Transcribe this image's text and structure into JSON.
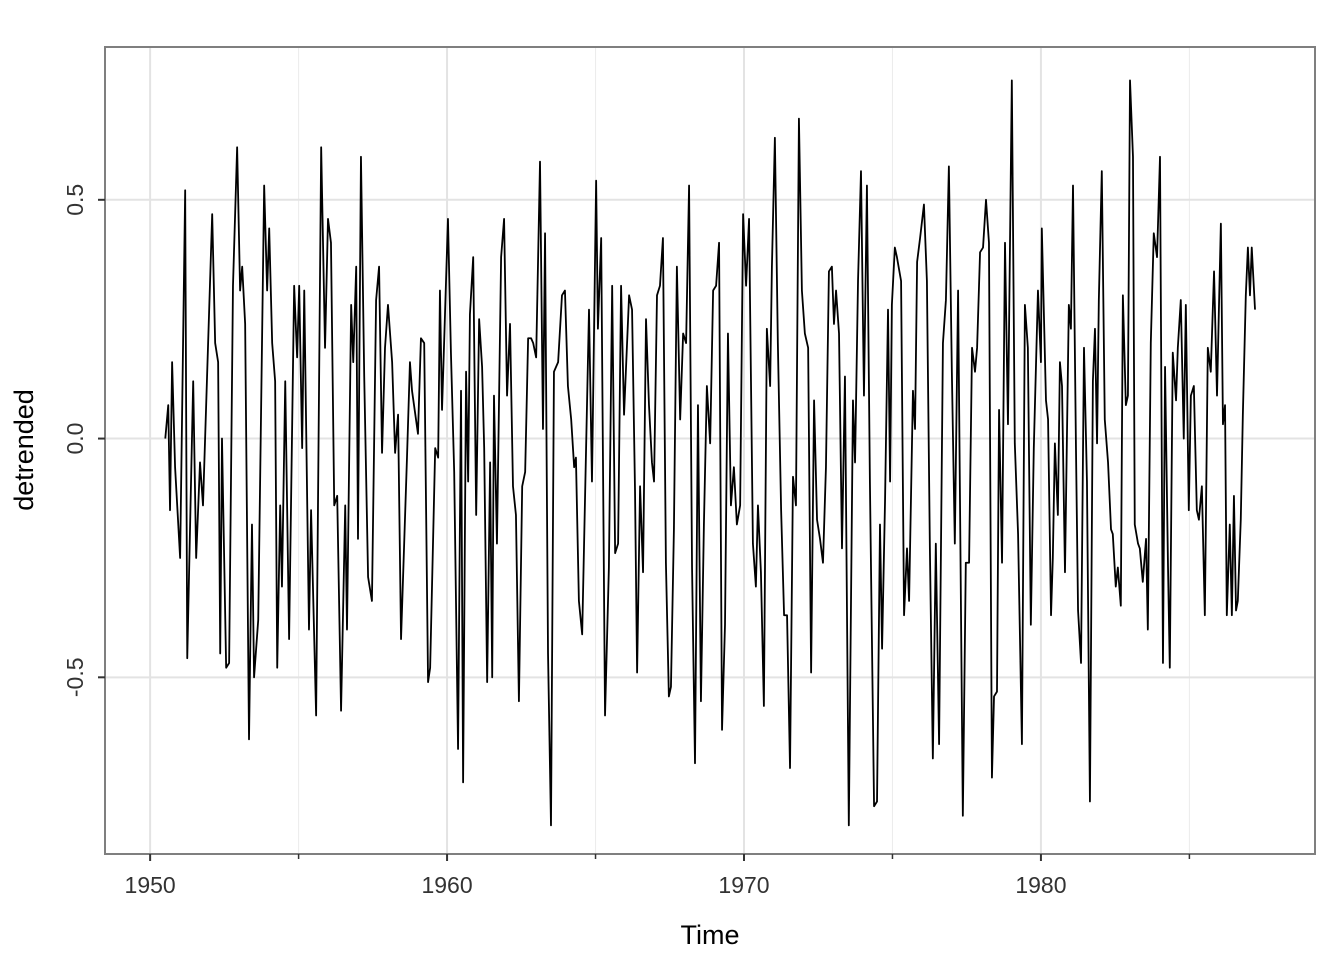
{
  "chart_data": {
    "type": "line",
    "xlabel": "Time",
    "ylabel": "detrended",
    "color": "#000000",
    "grid": true,
    "xlim": [
      1948.48,
      1989.23
    ],
    "xticks": [
      1950,
      1960,
      1970,
      1980
    ],
    "xminor": [
      1955,
      1965,
      1975,
      1985
    ],
    "ylim": [
      -0.87,
      0.82
    ],
    "yticks": [
      -0.5,
      {
        "value": 0,
        "label": "0.0"
      },
      0.5
    ],
    "x": [
      1950.51,
      1950.61,
      1950.67,
      1950.74,
      1950.84,
      1951.01,
      1951.18,
      1951.25,
      1951.45,
      1951.55,
      1951.68,
      1951.78,
      1952.09,
      1952.19,
      1952.29,
      1952.36,
      1952.42,
      1952.56,
      1952.66,
      1952.79,
      1952.93,
      1953.03,
      1953.1,
      1953.2,
      1953.33,
      1953.43,
      1953.5,
      1953.64,
      1953.84,
      1953.94,
      1954.01,
      1954.11,
      1954.21,
      1954.28,
      1954.38,
      1954.44,
      1954.55,
      1954.68,
      1954.85,
      1954.95,
      1955.02,
      1955.12,
      1955.19,
      1955.35,
      1955.42,
      1955.59,
      1955.76,
      1955.89,
      1955.99,
      1956.09,
      1956.2,
      1956.3,
      1956.43,
      1956.57,
      1956.63,
      1956.77,
      1956.84,
      1956.94,
      1957.0,
      1957.1,
      1957.21,
      1957.34,
      1957.47,
      1957.61,
      1957.71,
      1957.81,
      1957.91,
      1958.01,
      1958.15,
      1958.25,
      1958.35,
      1958.45,
      1958.65,
      1958.75,
      1958.82,
      1959.02,
      1959.12,
      1959.23,
      1959.36,
      1959.43,
      1959.6,
      1959.7,
      1959.76,
      1959.83,
      1959.93,
      1960.03,
      1960.13,
      1960.24,
      1960.37,
      1960.47,
      1960.54,
      1960.64,
      1960.71,
      1960.77,
      1960.88,
      1960.98,
      1961.08,
      1961.18,
      1961.25,
      1961.35,
      1961.45,
      1961.52,
      1961.58,
      1961.68,
      1961.82,
      1961.92,
      1962.02,
      1962.12,
      1962.22,
      1962.32,
      1962.42,
      1962.53,
      1962.63,
      1962.73,
      1962.83,
      1962.9,
      1963.0,
      1963.13,
      1963.23,
      1963.3,
      1963.4,
      1963.5,
      1963.6,
      1963.74,
      1963.87,
      1963.97,
      1964.07,
      1964.18,
      1964.28,
      1964.34,
      1964.44,
      1964.55,
      1964.78,
      1964.88,
      1965.02,
      1965.08,
      1965.19,
      1965.32,
      1965.45,
      1965.56,
      1965.66,
      1965.76,
      1965.86,
      1965.96,
      1966.13,
      1966.23,
      1966.33,
      1966.4,
      1966.5,
      1966.6,
      1966.7,
      1966.8,
      1966.9,
      1966.97,
      1967.07,
      1967.17,
      1967.27,
      1967.37,
      1967.47,
      1967.54,
      1967.64,
      1967.74,
      1967.85,
      1967.95,
      1968.05,
      1968.15,
      1968.25,
      1968.35,
      1968.45,
      1968.55,
      1968.65,
      1968.75,
      1968.86,
      1968.96,
      1969.06,
      1969.16,
      1969.26,
      1969.36,
      1969.46,
      1969.56,
      1969.66,
      1969.76,
      1969.87,
      1969.97,
      1970.07,
      1970.17,
      1970.3,
      1970.4,
      1970.47,
      1970.57,
      1970.67,
      1970.77,
      1970.88,
      1970.94,
      1971.04,
      1971.14,
      1971.25,
      1971.35,
      1971.45,
      1971.55,
      1971.65,
      1971.75,
      1971.85,
      1971.95,
      1972.05,
      1972.16,
      1972.26,
      1972.36,
      1972.46,
      1972.56,
      1972.66,
      1972.76,
      1972.86,
      1972.96,
      1973.03,
      1973.1,
      1973.2,
      1973.3,
      1973.4,
      1973.53,
      1973.67,
      1973.74,
      1973.84,
      1973.94,
      1974.04,
      1974.14,
      1974.24,
      1974.38,
      1974.48,
      1974.58,
      1974.65,
      1974.75,
      1974.85,
      1974.92,
      1974.98,
      1975.08,
      1975.15,
      1975.29,
      1975.39,
      1975.49,
      1975.56,
      1975.69,
      1975.76,
      1975.83,
      1975.93,
      1976.06,
      1976.16,
      1976.26,
      1976.36,
      1976.46,
      1976.57,
      1976.7,
      1976.8,
      1976.9,
      1977.0,
      1977.1,
      1977.21,
      1977.37,
      1977.47,
      1977.58,
      1977.68,
      1977.78,
      1977.85,
      1977.95,
      1978.05,
      1978.15,
      1978.25,
      1978.35,
      1978.42,
      1978.52,
      1978.59,
      1978.69,
      1978.79,
      1978.89,
      1979.02,
      1979.12,
      1979.23,
      1979.36,
      1979.46,
      1979.56,
      1979.66,
      1979.76,
      1979.9,
      1980.0,
      1980.03,
      1980.17,
      1980.24,
      1980.34,
      1980.4,
      1980.47,
      1980.57,
      1980.64,
      1980.71,
      1980.81,
      1980.94,
      1981.01,
      1981.08,
      1981.18,
      1981.25,
      1981.35,
      1981.45,
      1981.55,
      1981.65,
      1981.75,
      1981.82,
      1981.89,
      1981.95,
      1982.05,
      1982.15,
      1982.26,
      1982.36,
      1982.42,
      1982.52,
      1982.59,
      1982.69,
      1982.76,
      1982.86,
      1982.93,
      1983.0,
      1983.1,
      1983.16,
      1983.27,
      1983.33,
      1983.43,
      1983.54,
      1983.6,
      1983.7,
      1983.8,
      1983.91,
      1984.01,
      1984.11,
      1984.18,
      1984.28,
      1984.34,
      1984.44,
      1984.55,
      1984.61,
      1984.71,
      1984.81,
      1984.88,
      1984.98,
      1985.05,
      1985.15,
      1985.25,
      1985.32,
      1985.42,
      1985.52,
      1985.62,
      1985.72,
      1985.83,
      1985.93,
      1985.99,
      1986.06,
      1986.13,
      1986.2,
      1986.26,
      1986.36,
      1986.43,
      1986.5,
      1986.57,
      1986.63,
      1986.73,
      1986.8,
      1986.9,
      1986.97,
      1987.04,
      1987.1,
      1987.21
    ],
    "values": [
      0.0,
      0.07,
      -0.15,
      0.16,
      -0.06,
      -0.25,
      0.52,
      -0.46,
      0.12,
      -0.25,
      -0.05,
      -0.14,
      0.47,
      0.2,
      0.16,
      -0.45,
      0.0,
      -0.48,
      -0.47,
      0.32,
      0.61,
      0.31,
      0.36,
      0.24,
      -0.63,
      -0.18,
      -0.5,
      -0.38,
      0.53,
      0.31,
      0.44,
      0.2,
      0.12,
      -0.48,
      -0.14,
      -0.31,
      0.12,
      -0.42,
      0.32,
      0.17,
      0.32,
      -0.02,
      0.31,
      -0.4,
      -0.15,
      -0.58,
      0.61,
      0.19,
      0.46,
      0.41,
      -0.14,
      -0.12,
      -0.57,
      -0.14,
      -0.4,
      0.28,
      0.16,
      0.36,
      -0.21,
      0.59,
      0.13,
      -0.29,
      -0.34,
      0.29,
      0.36,
      -0.03,
      0.19,
      0.28,
      0.16,
      -0.03,
      0.05,
      -0.42,
      -0.04,
      0.16,
      0.1,
      0.01,
      0.21,
      0.2,
      -0.51,
      -0.48,
      -0.02,
      -0.04,
      0.31,
      0.06,
      0.26,
      0.46,
      0.18,
      -0.07,
      -0.65,
      0.1,
      -0.72,
      0.14,
      -0.09,
      0.26,
      0.38,
      -0.16,
      0.25,
      0.15,
      -0.02,
      -0.51,
      -0.05,
      -0.5,
      0.09,
      -0.22,
      0.38,
      0.46,
      0.09,
      0.24,
      -0.1,
      -0.16,
      -0.55,
      -0.1,
      -0.07,
      0.21,
      0.21,
      0.2,
      0.17,
      0.58,
      0.02,
      0.43,
      -0.45,
      -0.81,
      0.14,
      0.16,
      0.3,
      0.31,
      0.11,
      0.04,
      -0.06,
      -0.04,
      -0.34,
      -0.41,
      0.27,
      -0.09,
      0.54,
      0.23,
      0.42,
      -0.58,
      -0.27,
      0.32,
      -0.24,
      -0.22,
      0.32,
      0.05,
      0.3,
      0.27,
      -0.11,
      -0.49,
      -0.1,
      -0.28,
      0.25,
      0.07,
      -0.05,
      -0.09,
      0.3,
      0.32,
      0.42,
      -0.26,
      -0.54,
      -0.52,
      -0.19,
      0.36,
      0.04,
      0.22,
      0.2,
      0.53,
      -0.27,
      -0.68,
      0.07,
      -0.55,
      -0.18,
      0.11,
      -0.01,
      0.31,
      0.32,
      0.41,
      -0.61,
      -0.39,
      0.22,
      -0.14,
      -0.06,
      -0.18,
      -0.14,
      0.47,
      0.32,
      0.46,
      -0.22,
      -0.31,
      -0.14,
      -0.28,
      -0.56,
      0.23,
      0.11,
      0.36,
      0.63,
      0.2,
      -0.15,
      -0.37,
      -0.37,
      -0.69,
      -0.08,
      -0.14,
      0.67,
      0.31,
      0.22,
      0.19,
      -0.49,
      0.08,
      -0.17,
      -0.21,
      -0.26,
      -0.06,
      0.35,
      0.36,
      0.24,
      0.31,
      0.22,
      -0.23,
      0.13,
      -0.81,
      0.08,
      -0.05,
      0.33,
      0.56,
      0.09,
      0.53,
      -0.09,
      -0.77,
      -0.76,
      -0.18,
      -0.44,
      -0.13,
      0.27,
      -0.09,
      0.28,
      0.4,
      0.38,
      0.33,
      -0.37,
      -0.23,
      -0.34,
      0.1,
      0.02,
      0.37,
      0.42,
      0.49,
      0.33,
      -0.23,
      -0.67,
      -0.22,
      -0.64,
      0.2,
      0.29,
      0.57,
      0.14,
      -0.22,
      0.31,
      -0.79,
      -0.26,
      -0.26,
      0.19,
      0.14,
      0.19,
      0.39,
      0.4,
      0.5,
      0.41,
      -0.71,
      -0.54,
      -0.53,
      0.06,
      -0.26,
      0.41,
      0.03,
      0.75,
      -0.01,
      -0.2,
      -0.64,
      0.28,
      0.19,
      -0.39,
      -0.02,
      0.31,
      0.16,
      0.44,
      0.08,
      0.04,
      -0.37,
      -0.25,
      -0.01,
      -0.16,
      0.16,
      0.11,
      -0.28,
      0.28,
      0.23,
      0.53,
      -0.02,
      -0.36,
      -0.47,
      0.19,
      -0.09,
      -0.76,
      0.12,
      0.23,
      -0.01,
      0.29,
      0.56,
      0.04,
      -0.05,
      -0.19,
      -0.2,
      -0.31,
      -0.27,
      -0.35,
      0.3,
      0.07,
      0.09,
      0.75,
      0.59,
      -0.18,
      -0.22,
      -0.23,
      -0.3,
      -0.21,
      -0.4,
      0.2,
      0.43,
      0.38,
      0.59,
      -0.47,
      0.15,
      -0.27,
      -0.48,
      0.18,
      0.08,
      0.19,
      0.29,
      0.0,
      0.28,
      -0.15,
      0.09,
      0.11,
      -0.15,
      -0.17,
      -0.1,
      -0.37,
      0.19,
      0.14,
      0.35,
      0.09,
      0.26,
      0.45,
      0.03,
      0.07,
      -0.37,
      -0.18,
      -0.37,
      -0.12,
      -0.36,
      -0.34,
      -0.17,
      0.05,
      0.3,
      0.4,
      0.3,
      0.4,
      0.27
    ]
  }
}
